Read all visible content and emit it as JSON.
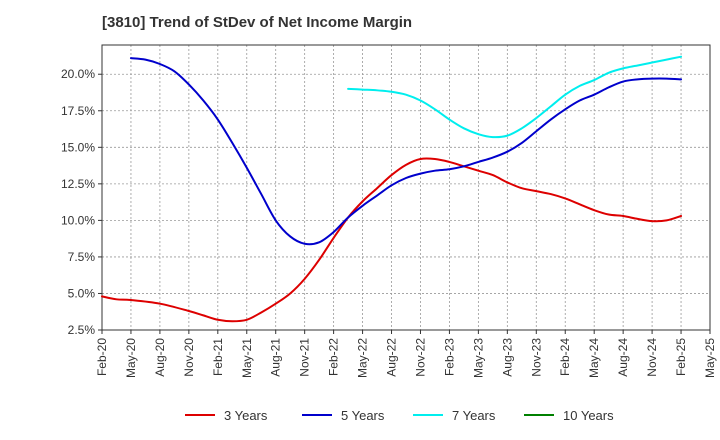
{
  "chart_data": {
    "type": "line",
    "title": "[3810]  Trend of StDev of Net Income Margin",
    "x_ticks": [
      "Feb-20",
      "May-20",
      "Aug-20",
      "Nov-20",
      "Feb-21",
      "May-21",
      "Aug-21",
      "Nov-21",
      "Feb-22",
      "May-22",
      "Aug-22",
      "Nov-22",
      "Feb-23",
      "May-23",
      "Aug-23",
      "Nov-23",
      "Feb-24",
      "May-24",
      "Aug-24",
      "Nov-24",
      "Feb-25",
      "May-25"
    ],
    "y_ticks": [
      "2.5%",
      "5.0%",
      "7.5%",
      "10.0%",
      "12.5%",
      "15.0%",
      "17.5%",
      "20.0%"
    ],
    "ylim": [
      2.5,
      22.0
    ],
    "grid": true,
    "legend_position": "bottom",
    "series": [
      {
        "name": "3 Years",
        "color": "#dd0000",
        "points": [
          [
            0,
            4.8
          ],
          [
            0.5,
            4.6
          ],
          [
            1,
            4.55
          ],
          [
            2,
            4.3
          ],
          [
            3,
            3.8
          ],
          [
            3.5,
            3.5
          ],
          [
            4,
            3.2
          ],
          [
            4.5,
            3.1
          ],
          [
            5,
            3.2
          ],
          [
            5.5,
            3.7
          ],
          [
            6,
            4.3
          ],
          [
            6.5,
            5.0
          ],
          [
            7,
            6.0
          ],
          [
            7.5,
            7.3
          ],
          [
            8,
            8.8
          ],
          [
            8.5,
            10.2
          ],
          [
            9,
            11.3
          ],
          [
            9.5,
            12.2
          ],
          [
            10,
            13.1
          ],
          [
            10.5,
            13.8
          ],
          [
            11,
            14.2
          ],
          [
            11.5,
            14.2
          ],
          [
            12,
            14.0
          ],
          [
            12.5,
            13.7
          ],
          [
            13,
            13.4
          ],
          [
            13.5,
            13.1
          ],
          [
            14,
            12.6
          ],
          [
            14.5,
            12.2
          ],
          [
            15,
            12.0
          ],
          [
            15.5,
            11.8
          ],
          [
            16,
            11.5
          ],
          [
            16.5,
            11.1
          ],
          [
            17,
            10.7
          ],
          [
            17.5,
            10.4
          ],
          [
            18,
            10.3
          ],
          [
            18.5,
            10.1
          ],
          [
            19,
            9.95
          ],
          [
            19.5,
            10.0
          ],
          [
            20,
            10.3
          ]
        ]
      },
      {
        "name": "5 Years",
        "color": "#0000cc",
        "points": [
          [
            1,
            21.1
          ],
          [
            1.5,
            21.0
          ],
          [
            2,
            20.7
          ],
          [
            2.5,
            20.2
          ],
          [
            3,
            19.3
          ],
          [
            3.5,
            18.2
          ],
          [
            4,
            16.9
          ],
          [
            4.5,
            15.3
          ],
          [
            5,
            13.6
          ],
          [
            5.5,
            11.8
          ],
          [
            6,
            10.0
          ],
          [
            6.5,
            8.9
          ],
          [
            7,
            8.4
          ],
          [
            7.5,
            8.5
          ],
          [
            8,
            9.2
          ],
          [
            8.5,
            10.2
          ],
          [
            9,
            11.0
          ],
          [
            9.5,
            11.7
          ],
          [
            10,
            12.4
          ],
          [
            10.5,
            12.9
          ],
          [
            11,
            13.2
          ],
          [
            11.5,
            13.4
          ],
          [
            12,
            13.5
          ],
          [
            12.5,
            13.7
          ],
          [
            13,
            14.0
          ],
          [
            13.5,
            14.3
          ],
          [
            14,
            14.7
          ],
          [
            14.5,
            15.3
          ],
          [
            15,
            16.1
          ],
          [
            15.5,
            16.9
          ],
          [
            16,
            17.6
          ],
          [
            16.5,
            18.2
          ],
          [
            17,
            18.6
          ],
          [
            17.5,
            19.1
          ],
          [
            18,
            19.5
          ],
          [
            18.5,
            19.65
          ],
          [
            19,
            19.7
          ],
          [
            19.5,
            19.7
          ],
          [
            20,
            19.65
          ]
        ]
      },
      {
        "name": "7 Years",
        "color": "#00eeee",
        "points": [
          [
            8.5,
            19.0
          ],
          [
            9,
            18.95
          ],
          [
            9.5,
            18.9
          ],
          [
            10,
            18.8
          ],
          [
            10.5,
            18.6
          ],
          [
            11,
            18.2
          ],
          [
            11.5,
            17.6
          ],
          [
            12,
            16.9
          ],
          [
            12.5,
            16.3
          ],
          [
            13,
            15.9
          ],
          [
            13.5,
            15.7
          ],
          [
            14,
            15.8
          ],
          [
            14.5,
            16.3
          ],
          [
            15,
            17.0
          ],
          [
            15.5,
            17.8
          ],
          [
            16,
            18.6
          ],
          [
            16.5,
            19.2
          ],
          [
            17,
            19.6
          ],
          [
            17.5,
            20.1
          ],
          [
            18,
            20.4
          ],
          [
            18.5,
            20.6
          ],
          [
            19,
            20.8
          ],
          [
            19.5,
            21.0
          ],
          [
            20,
            21.2
          ]
        ]
      },
      {
        "name": "10 Years",
        "color": "#008000",
        "points": []
      }
    ]
  }
}
